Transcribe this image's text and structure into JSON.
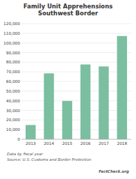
{
  "chart_data": {
    "type": "bar",
    "title": "Family Unit Apprehensions",
    "subtitle": "Southwest Border",
    "categories": [
      "2013",
      "2014",
      "2015",
      "2016",
      "2017",
      "2018"
    ],
    "values": [
      14855,
      68445,
      39838,
      77674,
      75622,
      107212
    ],
    "color": "#7bbfa0",
    "ylim": [
      0,
      120000
    ],
    "yticks": [
      0,
      {
        "value": 10000,
        "label": "10,000"
      },
      {
        "value": 20000,
        "label": "20,000"
      },
      {
        "value": 30000,
        "label": "30,000"
      },
      {
        "value": 40000,
        "label": "40,000"
      },
      {
        "value": 50000,
        "label": "50,000"
      },
      {
        "value": 60000,
        "label": "60,000"
      },
      {
        "value": 70000,
        "label": "70,000"
      },
      {
        "value": 80000,
        "label": "80,000"
      },
      {
        "value": 90000,
        "label": "90,000"
      },
      {
        "value": 100000,
        "label": "100,000"
      },
      {
        "value": 110000,
        "label": "110,000"
      },
      {
        "value": 120000,
        "label": "120,000"
      }
    ],
    "grid": true,
    "annotations": [
      "Data by fiscal year",
      "Source: U.S. Customs and Border Protection",
      "FactCheck.org"
    ]
  }
}
